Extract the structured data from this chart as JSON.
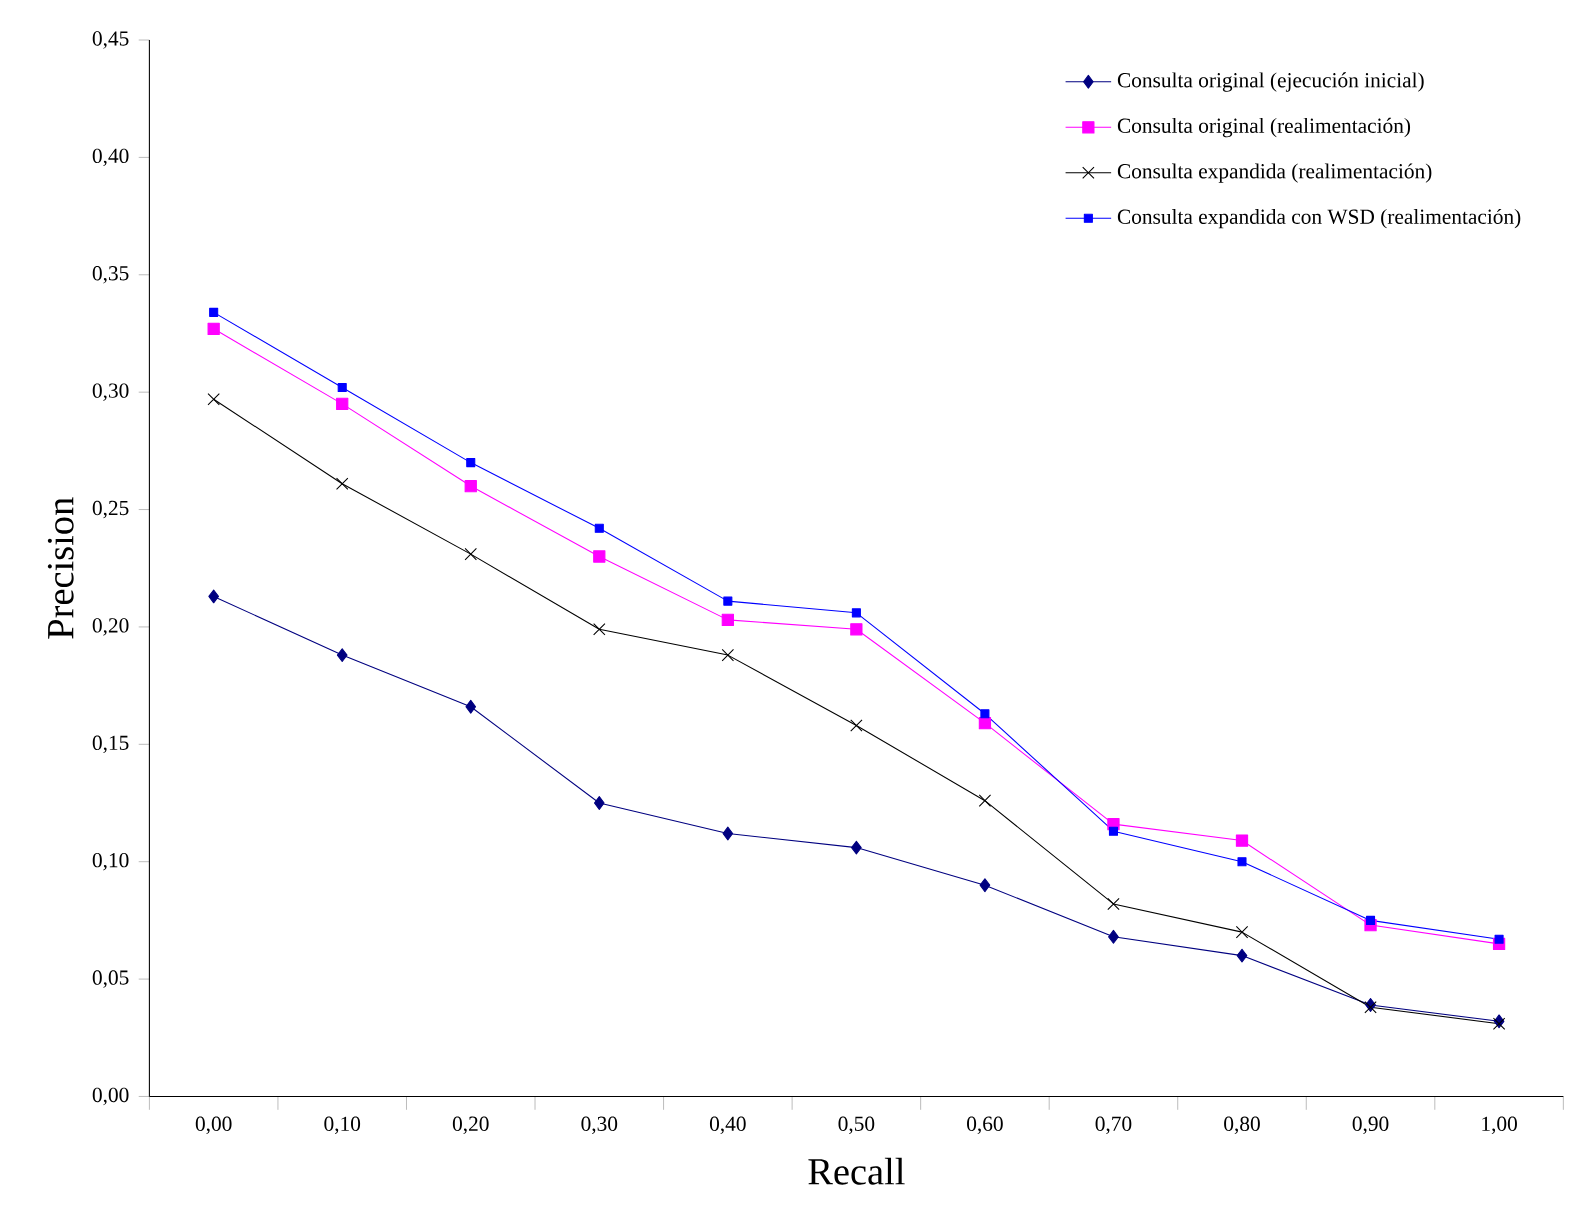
{
  "chart_data": {
    "type": "line",
    "xlabel": "Recall",
    "ylabel": "Precision",
    "categories": [
      "0,00",
      "0,10",
      "0,20",
      "0,30",
      "0,40",
      "0,50",
      "0,60",
      "0,70",
      "0,80",
      "0,90",
      "1,00"
    ],
    "ylim": [
      0,
      0.45
    ],
    "yticks": [
      {
        "value": 0,
        "label": "0,00"
      },
      {
        "value": 0.05,
        "label": "0,05"
      },
      {
        "value": 0.1,
        "label": "0,10"
      },
      {
        "value": 0.15,
        "label": "0,15"
      },
      {
        "value": 0.2,
        "label": "0,20"
      },
      {
        "value": 0.25,
        "label": "0,25"
      },
      {
        "value": 0.3,
        "label": "0,30"
      },
      {
        "value": 0.35,
        "label": "0,35"
      },
      {
        "value": 0.4,
        "label": "0,40"
      },
      {
        "value": 0.45,
        "label": "0,45"
      }
    ],
    "grid": false,
    "legend": "top right",
    "line_style": "solid",
    "series": [
      {
        "name": "Consulta original (ejecución inicial)",
        "color": "#000080",
        "marker": "diamond",
        "values": [
          0.213,
          0.188,
          0.166,
          0.125,
          0.112,
          0.106,
          0.09,
          0.068,
          0.06,
          0.039,
          0.032
        ]
      },
      {
        "name": "Consulta original (realimentación)",
        "color": "#ff00ff",
        "marker": "square",
        "values": [
          0.327,
          0.295,
          0.26,
          0.23,
          0.203,
          0.199,
          0.159,
          0.116,
          0.109,
          0.073,
          0.065
        ]
      },
      {
        "name": "Consulta expandida (realimentación)",
        "color": "#000000",
        "marker": "cross",
        "values": [
          0.297,
          0.261,
          0.231,
          0.199,
          0.188,
          0.158,
          0.126,
          0.082,
          0.07,
          0.038,
          0.031
        ]
      },
      {
        "name": "Consulta expandida con WSD (realimentación)",
        "color": "#0000ff",
        "marker": "square",
        "values": [
          0.334,
          0.302,
          0.27,
          0.242,
          0.211,
          0.206,
          0.163,
          0.113,
          0.1,
          0.075,
          0.067
        ]
      }
    ]
  }
}
